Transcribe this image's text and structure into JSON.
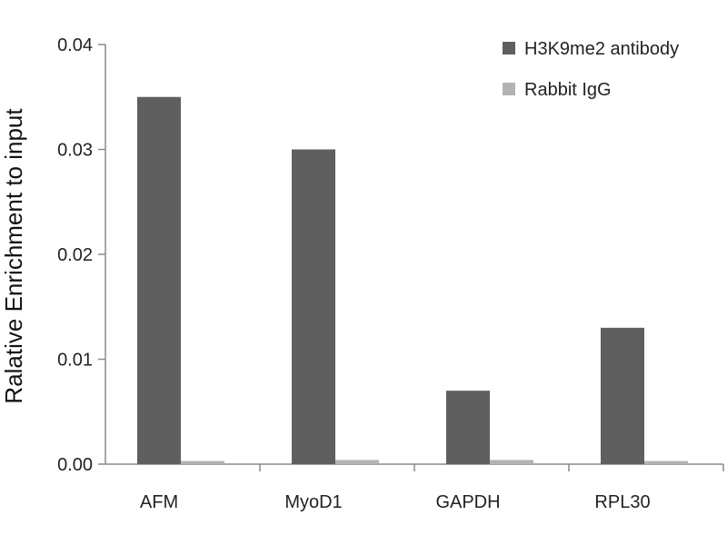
{
  "chart_data": {
    "type": "bar",
    "categories": [
      "AFM",
      "MyoD1",
      "GAPDH",
      "RPL30"
    ],
    "series": [
      {
        "name": "H3K9me2 antibody",
        "color": "#5f5f5f",
        "values": [
          0.035,
          0.03,
          0.007,
          0.013
        ]
      },
      {
        "name": "Rabbit IgG",
        "color": "#b3b3b3",
        "values": [
          0.0003,
          0.0004,
          0.0004,
          0.0003
        ]
      }
    ],
    "ylabel": "Ralative Enrichment to input",
    "ylim": [
      0,
      0.04
    ],
    "yticks": [
      "0.00",
      "0.01",
      "0.02",
      "0.03",
      "0.04"
    ],
    "grid": false,
    "legend_position": "top-right"
  }
}
